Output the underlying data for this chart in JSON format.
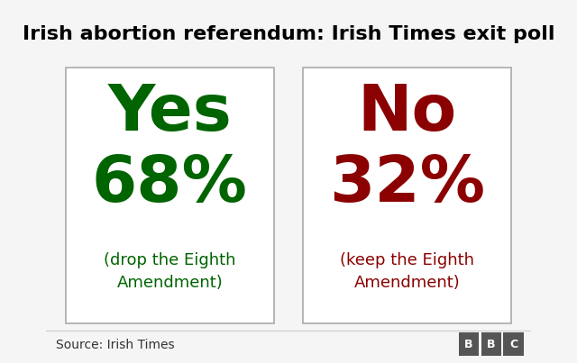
{
  "title": "Irish abortion referendum: Irish Times exit poll",
  "title_fontsize": 16,
  "title_color": "#000000",
  "background_color": "#f5f5f5",
  "box_bg_color": "#ffffff",
  "box_edge_color": "#aaaaaa",
  "yes_label": "Yes",
  "yes_pct": "68%",
  "yes_sub": "(drop the Eighth\nAmendment)",
  "yes_color": "#006400",
  "no_label": "No",
  "no_pct": "32%",
  "no_sub": "(keep the Eighth\nAmendment)",
  "no_color": "#8b0000",
  "source_text": "Source: Irish Times",
  "source_fontsize": 10,
  "label_fontsize": 52,
  "pct_fontsize": 52,
  "sub_fontsize": 13
}
